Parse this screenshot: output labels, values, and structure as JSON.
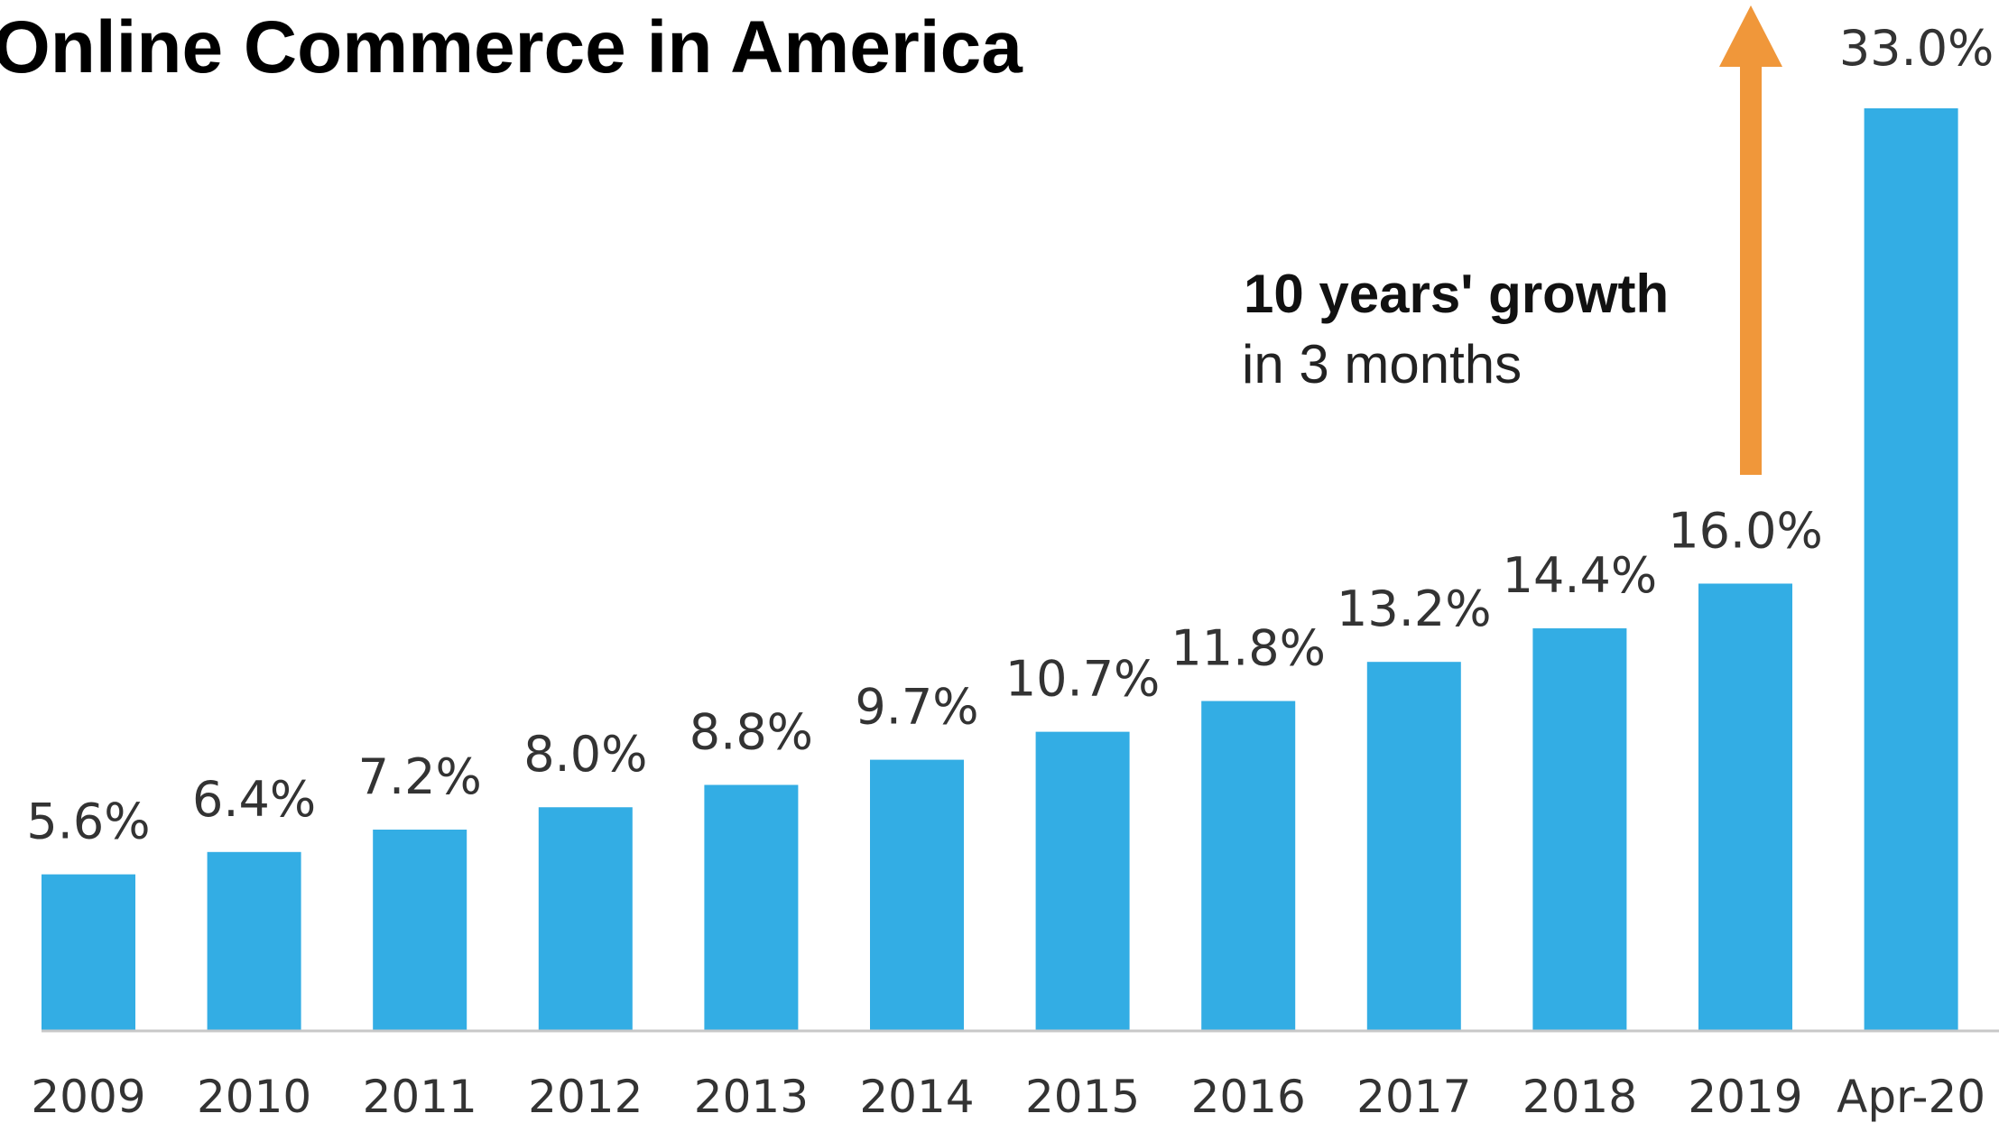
{
  "title": "Online Commerce in America",
  "colors": {
    "bar": "#33ade4",
    "arrow": "#f0973a",
    "baseline": "#c8c8c8"
  },
  "chart_data": {
    "type": "bar",
    "title": "Online Commerce in America",
    "categories": [
      "2009",
      "2010",
      "2011",
      "2012",
      "2013",
      "2014",
      "2015",
      "2016",
      "2017",
      "2018",
      "2019",
      "Apr-20"
    ],
    "values": [
      5.6,
      6.4,
      7.2,
      8.0,
      8.8,
      9.7,
      10.7,
      11.8,
      13.2,
      14.4,
      16.0,
      33.0
    ],
    "value_labels": [
      "5.6%",
      "6.4%",
      "7.2%",
      "8.0%",
      "8.8%",
      "9.7%",
      "10.7%",
      "11.8%",
      "13.2%",
      "14.4%",
      "16.0%",
      "33.0%"
    ],
    "xlabel": "",
    "ylabel": "",
    "ylim": [
      0,
      33.0
    ],
    "grid": false,
    "legend": "none",
    "annotation": {
      "line1": "10 years' growth",
      "line2": "in 3 months",
      "arrow": "up-arrow"
    }
  }
}
